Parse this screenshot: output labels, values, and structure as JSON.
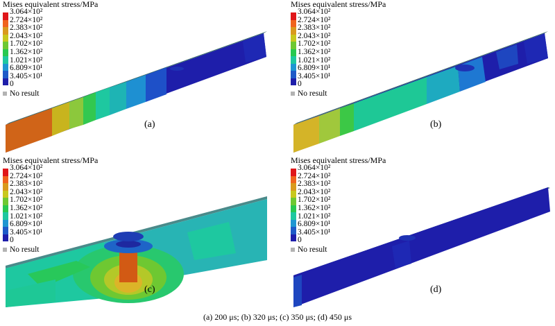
{
  "legend": {
    "title": "Mises equivalent stress/MPa",
    "values": [
      "3.064×10²",
      "2.724×10²",
      "2.383×10²",
      "2.043×10²",
      "1.702×10²",
      "1.362×10²",
      "1.021×10²",
      "6.809×10¹",
      "3.405×10¹",
      "0"
    ],
    "colors": [
      "#e0161a",
      "#f0641e",
      "#d99a1e",
      "#c8c81e",
      "#6ec832",
      "#28c850",
      "#1ec8a0",
      "#1e96d2",
      "#1e5ac8",
      "#1e1eaa"
    ],
    "no_result": "No result",
    "no_result_color": "#b3b3b3"
  },
  "panels": [
    {
      "label": "(a)"
    },
    {
      "label": "(b)"
    },
    {
      "label": "(c)"
    },
    {
      "label": "(d)"
    }
  ],
  "caption": "(a) 200 μs; (b) 320 μs; (c) 350 μs; (d) 450 μs"
}
